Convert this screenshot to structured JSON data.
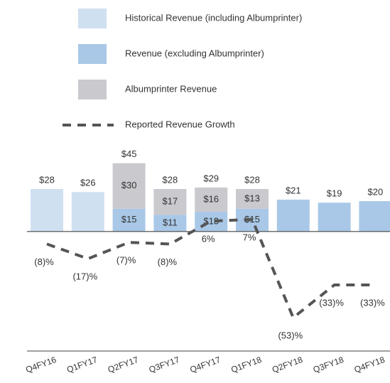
{
  "chart_data": {
    "type": "bar",
    "categories": [
      "Q4FY16",
      "Q1FY17",
      "Q2FY17",
      "Q3FY17",
      "Q4FY17",
      "Q1FY18",
      "Q2FY18",
      "Q3FY18",
      "Q4FY18"
    ],
    "stacked": true,
    "series": [
      {
        "name": "Historical Revenue (including Albumprinter)",
        "color": "#cfe0f1",
        "values": [
          28,
          26,
          null,
          null,
          null,
          null,
          null,
          null,
          null
        ],
        "value_labels": [
          "$28",
          "$26",
          null,
          null,
          null,
          null,
          null,
          null,
          null
        ]
      },
      {
        "name": "Revenue (excluding Albumprinter)",
        "color": "#a9c8e7",
        "values": [
          null,
          null,
          15,
          11,
          13,
          15,
          21,
          19,
          20
        ],
        "value_labels": [
          null,
          null,
          "$15",
          "$11",
          "$13",
          "$15",
          "$21",
          "$19",
          "$20"
        ]
      },
      {
        "name": "Albumprinter Revenue",
        "color": "#c9c9ce",
        "values": [
          null,
          null,
          30,
          17,
          16,
          13,
          null,
          null,
          null
        ],
        "value_labels": [
          null,
          null,
          "$30",
          "$17",
          "$16",
          "$13",
          null,
          null,
          null
        ]
      },
      {
        "name": "Reported Revenue Growth",
        "type": "line",
        "color": "#555555",
        "axis": "y2",
        "dashed": true,
        "values": [
          -8,
          -17,
          -7,
          -8,
          6,
          7,
          -53,
          -33,
          -33
        ],
        "value_labels": [
          "(8)%",
          "(17)%",
          "(7)%",
          "(8)%",
          "6%",
          "7%",
          "(53)%",
          "(33)%",
          "(33)%"
        ]
      }
    ],
    "totals": {
      "values": [
        null,
        null,
        45,
        28,
        29,
        28,
        null,
        null,
        null
      ],
      "value_labels": [
        null,
        null,
        "$45",
        "$28",
        "$29",
        "$28",
        null,
        null,
        null
      ]
    },
    "ylim": [
      -60,
      50
    ],
    "y2lim": [
      -56,
      46
    ]
  }
}
